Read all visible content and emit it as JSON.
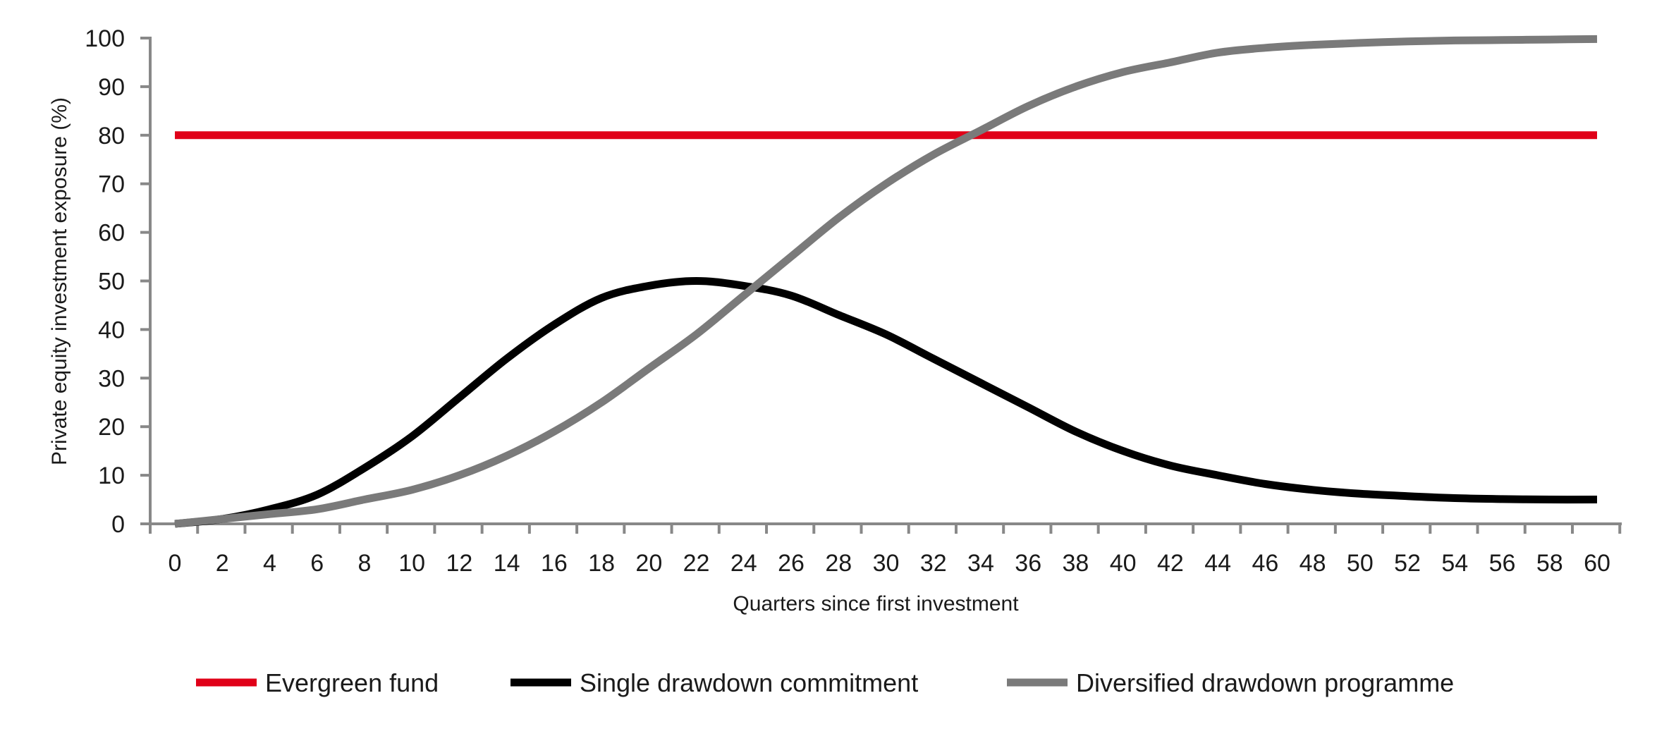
{
  "chart_data": {
    "type": "line",
    "title": "",
    "xlabel": "Quarters since first investment",
    "ylabel": "Private equity investment exposure (%)",
    "xlim": [
      0,
      60
    ],
    "ylim": [
      0,
      100
    ],
    "x_ticks": [
      0,
      2,
      4,
      6,
      8,
      10,
      12,
      14,
      16,
      18,
      20,
      22,
      24,
      26,
      28,
      30,
      32,
      34,
      36,
      38,
      40,
      42,
      44,
      46,
      48,
      50,
      52,
      54,
      56,
      58,
      60
    ],
    "y_ticks": [
      0,
      10,
      20,
      30,
      40,
      50,
      60,
      70,
      80,
      90,
      100
    ],
    "grid": false,
    "legend_position": "bottom",
    "x": [
      0,
      2,
      4,
      6,
      8,
      10,
      12,
      14,
      16,
      18,
      20,
      22,
      24,
      26,
      28,
      30,
      32,
      34,
      36,
      38,
      40,
      42,
      44,
      46,
      48,
      50,
      52,
      54,
      56,
      58,
      60
    ],
    "series": [
      {
        "name": "Evergreen fund",
        "color": "#e00018",
        "values": [
          80,
          80,
          80,
          80,
          80,
          80,
          80,
          80,
          80,
          80,
          80,
          80,
          80,
          80,
          80,
          80,
          80,
          80,
          80,
          80,
          80,
          80,
          80,
          80,
          80,
          80,
          80,
          80,
          80,
          80,
          80
        ]
      },
      {
        "name": "Single drawdown commitment",
        "color": "#000000",
        "values": [
          0,
          1,
          3,
          6,
          11.5,
          18,
          26,
          34,
          41,
          46.5,
          49,
          50,
          49,
          47,
          43,
          39,
          34,
          29,
          24,
          19,
          15,
          12,
          10,
          8.2,
          7,
          6.2,
          5.7,
          5.3,
          5.1,
          5,
          5
        ]
      },
      {
        "name": "Diversified drawdown programme",
        "color": "#7a7a7a",
        "values": [
          0,
          1,
          2,
          3,
          5,
          7,
          10,
          14,
          19,
          25,
          32,
          39,
          47,
          55,
          63,
          70,
          76,
          81,
          86,
          90,
          93,
          95,
          97,
          98,
          98.6,
          99,
          99.3,
          99.5,
          99.6,
          99.7,
          99.8
        ]
      }
    ]
  }
}
